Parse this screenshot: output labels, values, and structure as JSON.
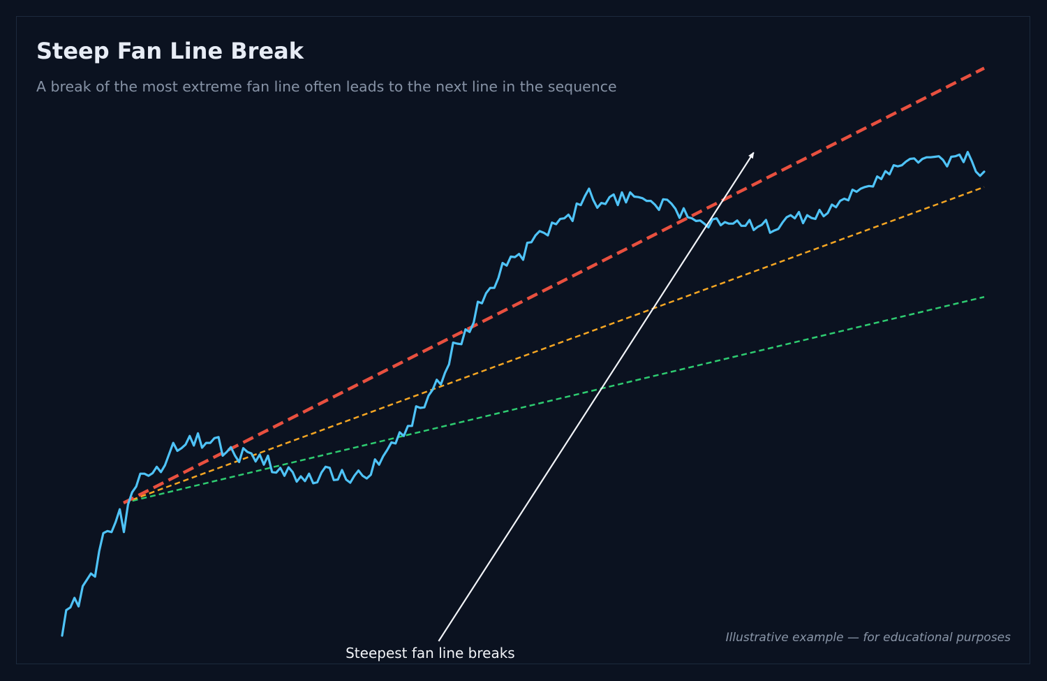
{
  "title": "Steep Fan Line Break",
  "subtitle": "A break of the most extreme fan line often leads to the next line in the sequence",
  "footnote": "Illustrative example — for educational purposes",
  "annotation": "Steepest fan line breaks",
  "colors": {
    "background": "#0b1220",
    "price": "#4fc3f7",
    "fan_steep": "#e8503f",
    "fan_mid": "#f5a623",
    "fan_shallow": "#2ecc71",
    "arrow": "#f2f4f8"
  },
  "chart_data": {
    "type": "line",
    "title": "Steep Fan Line Break",
    "subtitle": "A break of the most extreme fan line often leads to the next line in the sequence",
    "xlabel": "",
    "ylabel": "",
    "xlim": [
      0,
      240
    ],
    "ylim": [
      0,
      100
    ],
    "grid": false,
    "axes_visible": false,
    "series": [
      {
        "values": [
          0,
          4.8,
          5.3,
          7.1,
          5.5,
          9.3,
          10.5,
          11.7,
          11.1,
          15.9,
          19.3,
          19.7,
          19.5,
          21.4,
          23.8,
          19.5,
          24.7,
          27,
          28.1,
          30.5,
          30.5,
          30.1,
          30.6,
          31.8,
          30.8,
          32.1,
          34.2,
          36.3,
          34.8,
          35.3,
          36,
          37.6,
          35.8,
          38.1,
          35.4,
          36.3,
          36.3,
          37.2,
          37.4,
          33.9,
          34.6,
          35.5,
          33.9,
          32.7,
          35.3,
          34.6,
          34.3,
          32.8,
          34.1,
          32.2,
          33.9,
          30.8,
          30.7,
          31.6,
          30.1,
          31.7,
          30.8,
          29,
          30,
          29.1,
          30.5,
          28.7,
          28.9,
          30.7,
          31.8,
          31.6,
          29.3,
          29.4,
          31.2,
          29.4,
          28.8,
          30.1,
          31.1,
          30.1,
          29.6,
          30.3,
          33.2,
          32.2,
          33.8,
          35,
          36.4,
          36.2,
          38.3,
          37.6,
          39.5,
          39.5,
          43.2,
          42.9,
          43,
          45.2,
          46.3,
          48.2,
          47.3,
          49.5,
          51.1,
          55.2,
          55,
          54.9,
          57.7,
          57.2,
          59,
          62.9,
          62.6,
          64.5,
          65.5,
          65.5,
          67.4,
          70.2,
          69.7,
          71.4,
          71.3,
          71.9,
          70.8,
          74,
          74.1,
          75.4,
          76.2,
          75.9,
          75.4,
          77.8,
          77.5,
          78.5,
          78.6,
          79.3,
          78.1,
          81.4,
          81.1,
          82.8,
          84.2,
          82.1,
          80.6,
          81.5,
          81.3,
          82.6,
          83.1,
          81.1,
          83.5,
          81.6,
          83.5,
          82.7,
          82.6,
          82.4,
          81.9,
          81.9,
          81.2,
          80.2,
          82.2,
          82.1,
          81.4,
          80.4,
          78.7,
          80.5,
          78.8,
          78.6,
          78.1,
          78.2,
          77.6,
          76.9,
          78.4,
          78.6,
          77.3,
          77.9,
          77.6,
          77.6,
          78.2,
          77.2,
          77.2,
          78.3,
          76.4,
          77,
          77.4,
          78.3,
          75.9,
          76.3,
          76.6,
          77.8,
          78.8,
          79.2,
          78.6,
          79.8,
          77.7,
          79.2,
          78.7,
          78.5,
          80.2,
          79,
          79.6,
          81.2,
          80.7,
          81.9,
          82.3,
          82,
          84,
          83.6,
          84.2,
          84.5,
          84.7,
          84.6,
          86.5,
          86,
          87.5,
          86.9,
          88.6,
          88.4,
          88.6,
          89.3,
          89.8,
          89.9,
          89.1,
          89.8,
          90.1,
          90.1,
          90.2,
          90.3,
          89.6,
          88.4,
          90.2,
          90.3,
          90.6,
          89.2,
          91.1,
          89.4,
          87.4,
          86.6,
          87.4
        ]
      }
    ],
    "fan_lines": [
      {
        "name": "steepest",
        "style": "dashed-thick",
        "from": [
          16,
          25
        ],
        "to": [
          240,
          106.9
        ]
      },
      {
        "name": "middle",
        "style": "dashed",
        "from": [
          16,
          25
        ],
        "to": [
          240,
          84.5
        ]
      },
      {
        "name": "shallow",
        "style": "dashed",
        "from": [
          16,
          25
        ],
        "to": [
          240,
          63.8
        ]
      }
    ],
    "annotations": [
      {
        "text": "Steepest fan line breaks",
        "xy": [
          180,
          91
        ],
        "xytext": [
          98,
          0
        ]
      }
    ]
  }
}
